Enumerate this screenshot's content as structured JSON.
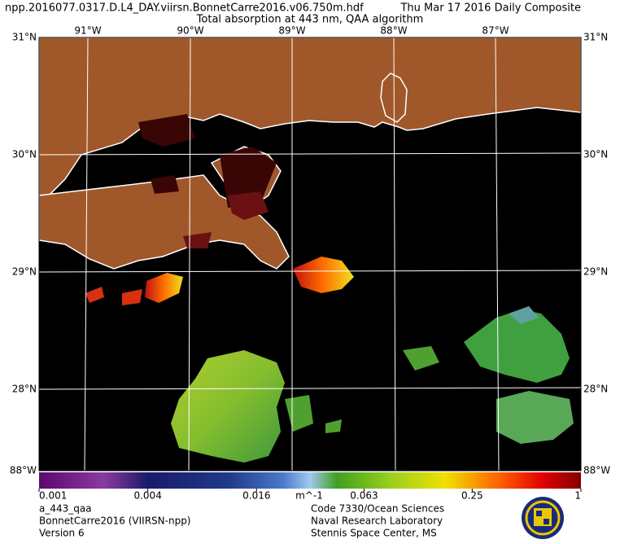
{
  "header": {
    "file": "npp.2016077.0317.D.L4_DAY.viirsn.BonnetCarre2016.v06.750m.hdf",
    "date": "Thu Mar 17 2016 Daily Composite",
    "title": "Total absorption at 443 nm, QAA algorithm"
  },
  "map": {
    "lon_labels": [
      "91°W",
      "90°W",
      "89°W",
      "88°W",
      "87°W"
    ],
    "lat_labels": [
      "31°N",
      "30°N",
      "29°N",
      "28°N"
    ],
    "corner_label": "88°W"
  },
  "colorbar": {
    "unit": "m^-1",
    "lim": [
      0.001,
      1
    ],
    "ticks": [
      0.001,
      0.004,
      0.016,
      0.063,
      0.25,
      1
    ],
    "log": true
  },
  "footer": {
    "left": [
      "a_443_qaa",
      "BonnetCarre2016 (VIIRSN-npp)",
      "Version 6"
    ],
    "right": [
      "Code 7330/Ocean Sciences",
      "Naval Research Laboratory",
      "Stennis Space Center, MS"
    ]
  }
}
